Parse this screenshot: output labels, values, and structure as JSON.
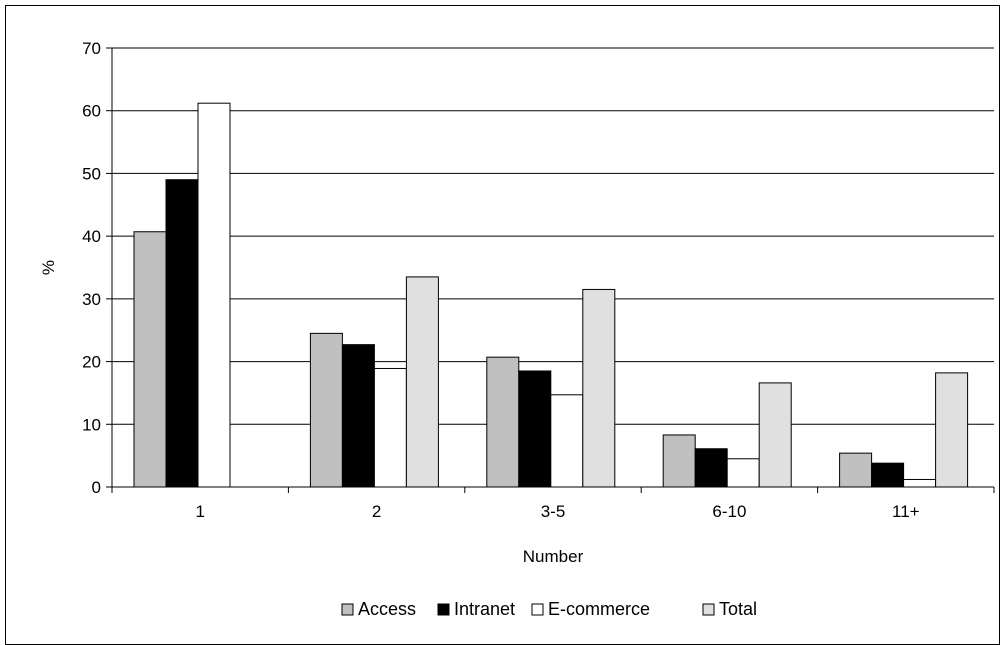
{
  "chart_data": {
    "type": "bar",
    "title": "",
    "xlabel": "Number",
    "ylabel": "%",
    "categories": [
      "1",
      "2",
      "3-5",
      "6-10",
      "11+"
    ],
    "ylim": [
      0,
      70
    ],
    "yticks": [
      0,
      10,
      20,
      30,
      40,
      50,
      60,
      70
    ],
    "grid": true,
    "legend_position": "bottom",
    "series": [
      {
        "name": "Access",
        "color": "#c0c0c0",
        "values": [
          40.7,
          24.5,
          20.7,
          8.3,
          5.4
        ]
      },
      {
        "name": "Intranet",
        "color": "#000000",
        "values": [
          49.0,
          22.7,
          18.5,
          6.1,
          3.8
        ]
      },
      {
        "name": "E-commerce",
        "color": "#ffffff",
        "values": [
          61.2,
          18.9,
          14.7,
          4.5,
          1.2
        ]
      },
      {
        "name": "Total",
        "color": "#e0e0e0",
        "values": [
          0,
          33.5,
          31.5,
          16.6,
          18.2
        ]
      }
    ]
  }
}
